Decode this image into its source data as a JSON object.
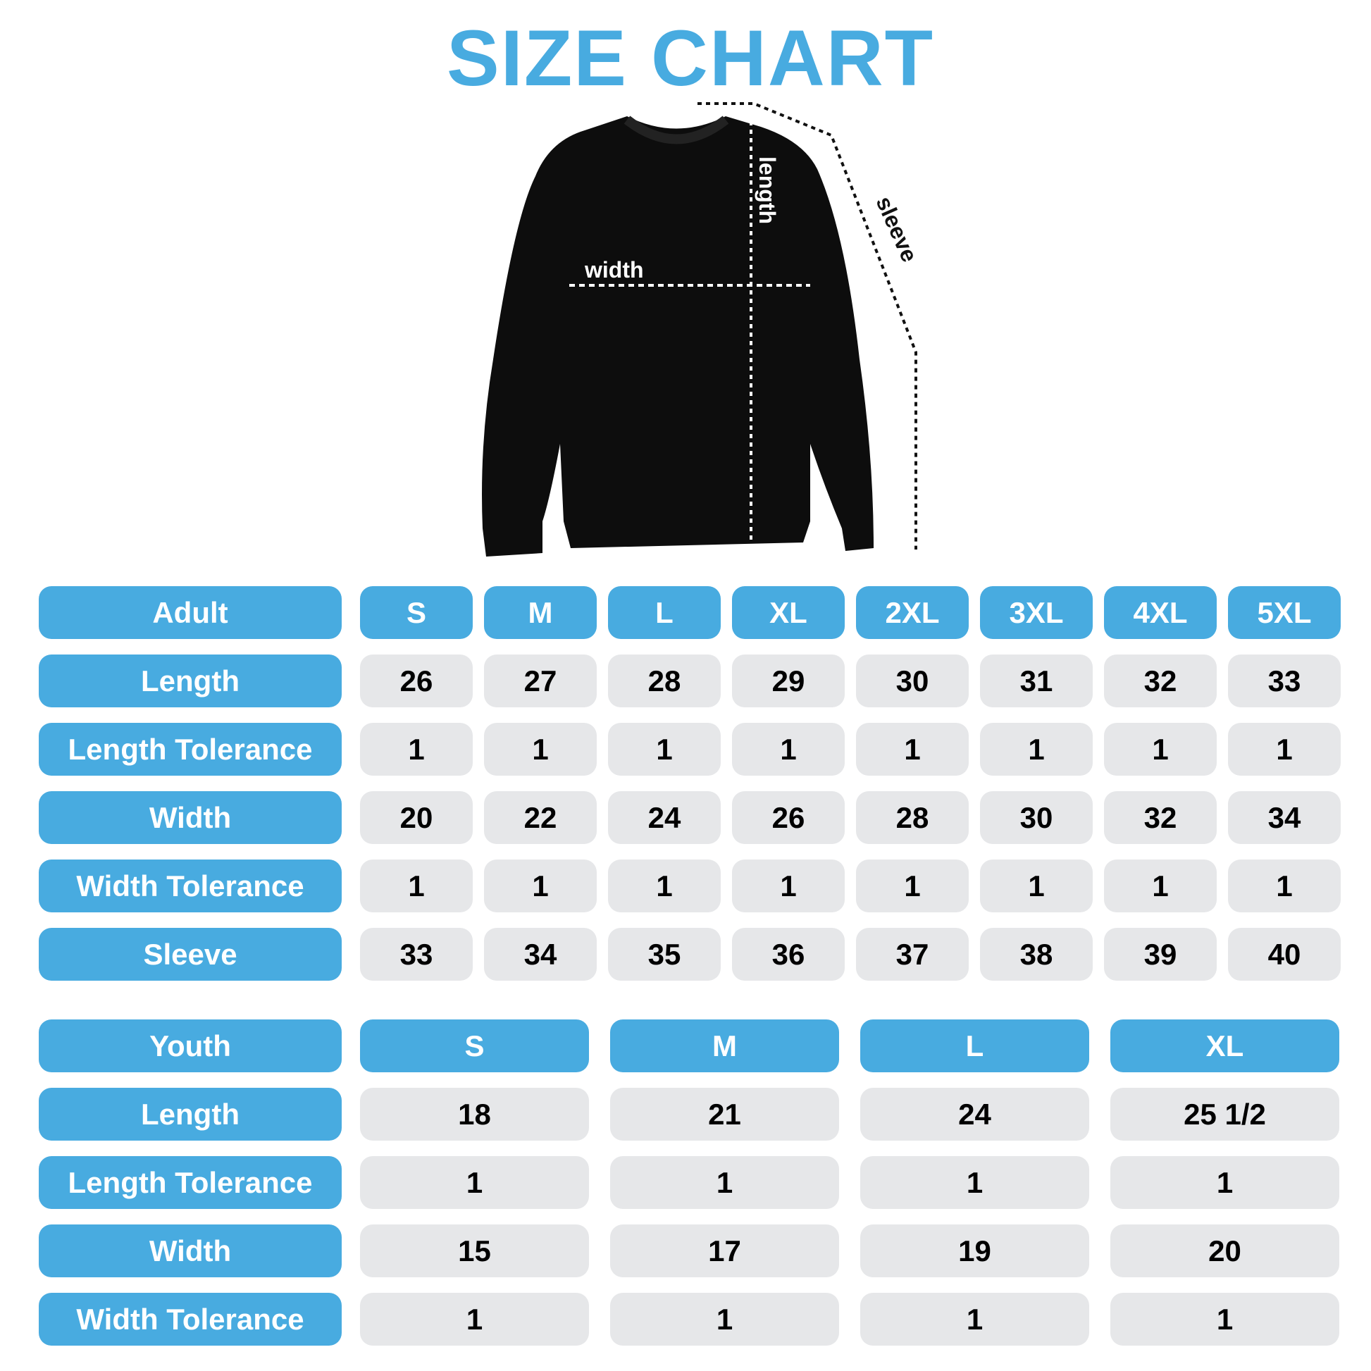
{
  "title": "SIZE CHART",
  "accent_color": "#48ABE0",
  "cell_color": "#E6E7E9",
  "diagram": {
    "length_label": "length",
    "width_label": "width",
    "sleeve_label": "sleeve"
  },
  "adult": {
    "header": "Adult",
    "sizes": [
      "S",
      "M",
      "L",
      "XL",
      "2XL",
      "3XL",
      "4XL",
      "5XL"
    ],
    "rows": [
      {
        "label": "Length",
        "values": [
          "26",
          "27",
          "28",
          "29",
          "30",
          "31",
          "32",
          "33"
        ]
      },
      {
        "label": "Length Tolerance",
        "values": [
          "1",
          "1",
          "1",
          "1",
          "1",
          "1",
          "1",
          "1"
        ]
      },
      {
        "label": "Width",
        "values": [
          "20",
          "22",
          "24",
          "26",
          "28",
          "30",
          "32",
          "34"
        ]
      },
      {
        "label": "Width Tolerance",
        "values": [
          "1",
          "1",
          "1",
          "1",
          "1",
          "1",
          "1",
          "1"
        ]
      },
      {
        "label": "Sleeve",
        "values": [
          "33",
          "34",
          "35",
          "36",
          "37",
          "38",
          "39",
          "40"
        ]
      }
    ]
  },
  "youth": {
    "header": "Youth",
    "sizes": [
      "S",
      "M",
      "L",
      "XL"
    ],
    "rows": [
      {
        "label": "Length",
        "values": [
          "18",
          "21",
          "24",
          "25 1/2"
        ]
      },
      {
        "label": "Length Tolerance",
        "values": [
          "1",
          "1",
          "1",
          "1"
        ]
      },
      {
        "label": "Width",
        "values": [
          "15",
          "17",
          "19",
          "20"
        ]
      },
      {
        "label": "Width Tolerance",
        "values": [
          "1",
          "1",
          "1",
          "1"
        ]
      }
    ]
  }
}
